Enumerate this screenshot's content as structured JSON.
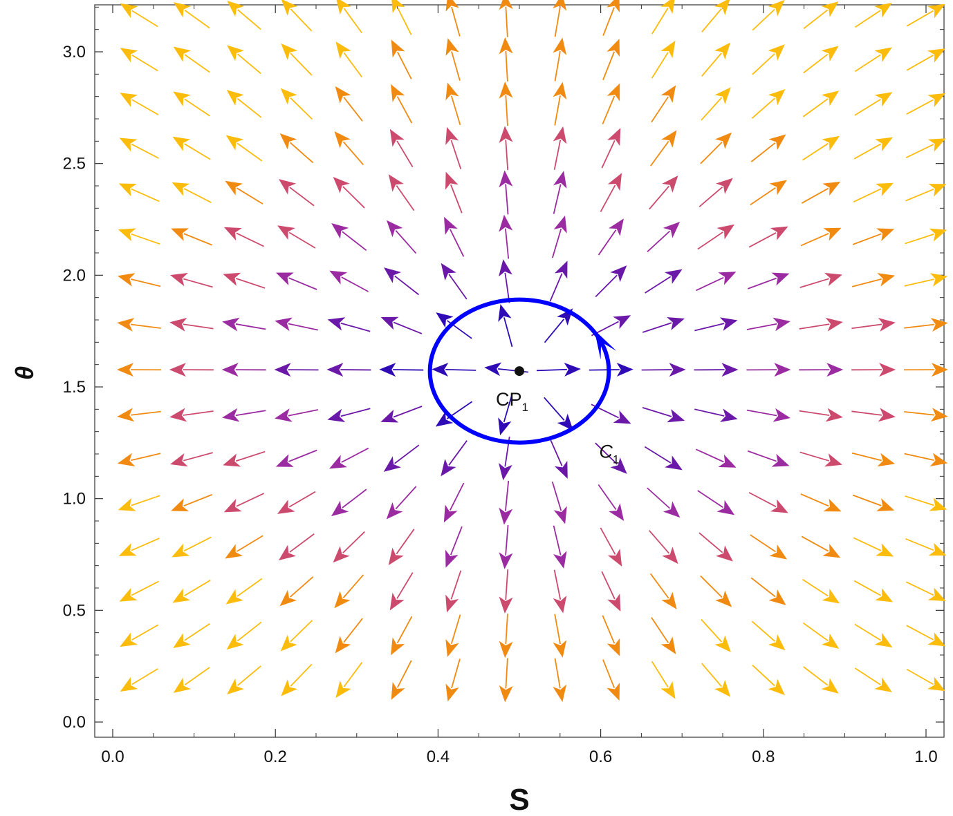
{
  "chart_data": {
    "type": "vector-field",
    "xlabel": "S",
    "ylabel": "θ",
    "xlim": [
      0.0,
      1.0
    ],
    "ylim": [
      0.0,
      3.14159
    ],
    "x_ticks": [
      {
        "v": 0.0,
        "label": "0.0"
      },
      {
        "v": 0.2,
        "label": "0.2"
      },
      {
        "v": 0.4,
        "label": "0.4"
      },
      {
        "v": 0.6,
        "label": "0.6"
      },
      {
        "v": 0.8,
        "label": "0.8"
      },
      {
        "v": 1.0,
        "label": "1.0"
      }
    ],
    "y_ticks": [
      {
        "v": 0.0,
        "label": "0.0"
      },
      {
        "v": 0.5,
        "label": "0.5"
      },
      {
        "v": 1.0,
        "label": "1.0"
      },
      {
        "v": 1.5,
        "label": "1.5"
      },
      {
        "v": 2.0,
        "label": "2.0"
      },
      {
        "v": 2.5,
        "label": "2.5"
      },
      {
        "v": 3.0,
        "label": "3.0"
      }
    ],
    "field": {
      "grid_x": [
        0.0323,
        0.0968,
        0.1613,
        0.2258,
        0.2903,
        0.3548,
        0.4194,
        0.4839,
        0.5484,
        0.6129,
        0.6774,
        0.7419,
        0.8065,
        0.871,
        0.9355,
        1.0
      ],
      "grid_y": [
        0.1873,
        0.3858,
        0.5843,
        0.7828,
        0.9813,
        1.1798,
        1.3783,
        1.5768,
        1.7753,
        1.9738,
        2.1723,
        2.3708,
        2.5693,
        2.7678,
        2.9663,
        3.1648
      ],
      "direction_rule": "normalized (S - 0.5, -cos θ), pointing away from the critical point",
      "colormap": [
        "#2e0bb5",
        "#6a18a8",
        "#9a2ba0",
        "#cc4a6e",
        "#f08a10",
        "#fbbc0c"
      ]
    },
    "critical_point": {
      "x": 0.5,
      "y": 1.5708,
      "label": "CP",
      "label_sub": "1"
    },
    "contour": {
      "cx": 0.5,
      "cy": 1.5708,
      "rx": 0.11,
      "ry": 0.32,
      "label": "C",
      "label_sub": "1",
      "color": "#0000ff",
      "direction": "counterclockwise"
    }
  }
}
